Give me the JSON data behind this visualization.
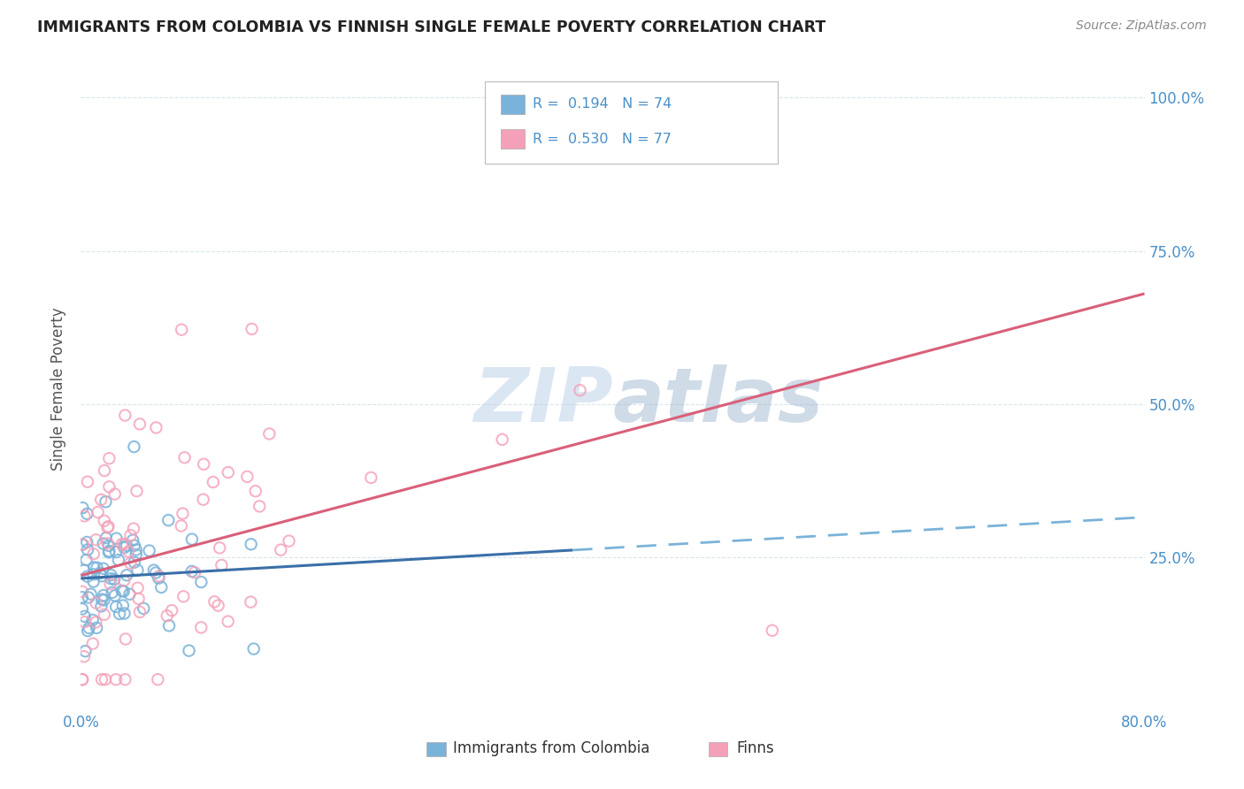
{
  "title": "IMMIGRANTS FROM COLOMBIA VS FINNISH SINGLE FEMALE POVERTY CORRELATION CHART",
  "source": "Source: ZipAtlas.com",
  "ylabel": "Single Female Poverty",
  "y_ticks_right": [
    "25.0%",
    "50.0%",
    "75.0%",
    "100.0%"
  ],
  "legend_row1": "R =  0.194   N = 74",
  "legend_row2": "R =  0.530   N = 77",
  "legend_bottom_blue": "Immigrants from Colombia",
  "legend_bottom_pink": "Finns",
  "watermark": "ZIPatlas",
  "blue_dot_color": "#7ab3d9",
  "pink_dot_color": "#f4a0b8",
  "blue_line_color": "#3a6fa8",
  "pink_line_color": "#d9607a",
  "dash_line_color": "#7ab3d9",
  "xlim": [
    0.0,
    0.8
  ],
  "ylim": [
    0.0,
    1.05
  ],
  "background_color": "#ffffff",
  "grid_color": "#d8e4ec",
  "right_tick_color": "#4a90c8",
  "x_tick_color": "#4a90c8",
  "title_color": "#222222",
  "source_color": "#888888"
}
